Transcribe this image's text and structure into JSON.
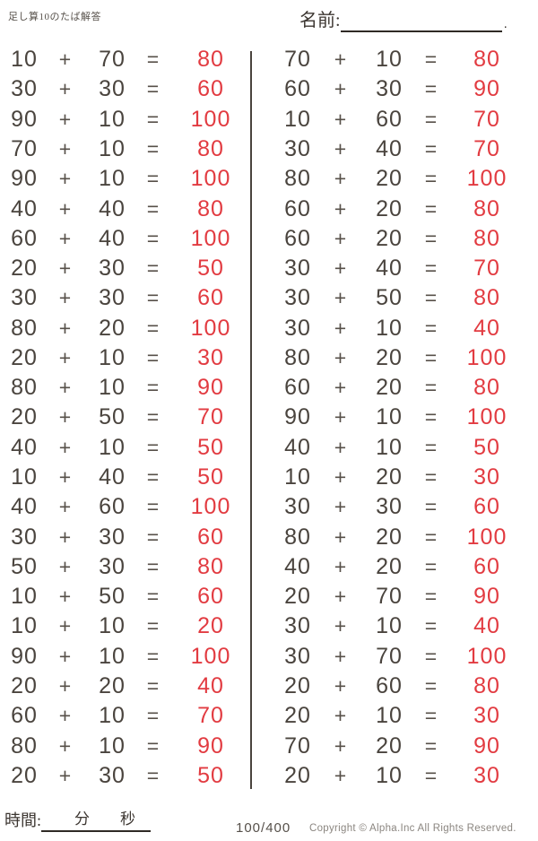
{
  "header": {
    "title": "足し算10のたば解答",
    "name_label": "名前:",
    "name_period": "."
  },
  "symbols": {
    "plus": "+",
    "equals": "="
  },
  "problems": {
    "left": [
      {
        "a": "10",
        "b": "70",
        "ans": "80"
      },
      {
        "a": "30",
        "b": "30",
        "ans": "60"
      },
      {
        "a": "90",
        "b": "10",
        "ans": "100"
      },
      {
        "a": "70",
        "b": "10",
        "ans": "80"
      },
      {
        "a": "90",
        "b": "10",
        "ans": "100"
      },
      {
        "a": "40",
        "b": "40",
        "ans": "80"
      },
      {
        "a": "60",
        "b": "40",
        "ans": "100"
      },
      {
        "a": "20",
        "b": "30",
        "ans": "50"
      },
      {
        "a": "30",
        "b": "30",
        "ans": "60"
      },
      {
        "a": "80",
        "b": "20",
        "ans": "100"
      },
      {
        "a": "20",
        "b": "10",
        "ans": "30"
      },
      {
        "a": "80",
        "b": "10",
        "ans": "90"
      },
      {
        "a": "20",
        "b": "50",
        "ans": "70"
      },
      {
        "a": "40",
        "b": "10",
        "ans": "50"
      },
      {
        "a": "10",
        "b": "40",
        "ans": "50"
      },
      {
        "a": "40",
        "b": "60",
        "ans": "100"
      },
      {
        "a": "30",
        "b": "30",
        "ans": "60"
      },
      {
        "a": "50",
        "b": "30",
        "ans": "80"
      },
      {
        "a": "10",
        "b": "50",
        "ans": "60"
      },
      {
        "a": "10",
        "b": "10",
        "ans": "20"
      },
      {
        "a": "90",
        "b": "10",
        "ans": "100"
      },
      {
        "a": "20",
        "b": "20",
        "ans": "40"
      },
      {
        "a": "60",
        "b": "10",
        "ans": "70"
      },
      {
        "a": "80",
        "b": "10",
        "ans": "90"
      },
      {
        "a": "20",
        "b": "30",
        "ans": "50"
      }
    ],
    "right": [
      {
        "a": "70",
        "b": "10",
        "ans": "80"
      },
      {
        "a": "60",
        "b": "30",
        "ans": "90"
      },
      {
        "a": "10",
        "b": "60",
        "ans": "70"
      },
      {
        "a": "30",
        "b": "40",
        "ans": "70"
      },
      {
        "a": "80",
        "b": "20",
        "ans": "100"
      },
      {
        "a": "60",
        "b": "20",
        "ans": "80"
      },
      {
        "a": "60",
        "b": "20",
        "ans": "80"
      },
      {
        "a": "30",
        "b": "40",
        "ans": "70"
      },
      {
        "a": "30",
        "b": "50",
        "ans": "80"
      },
      {
        "a": "30",
        "b": "10",
        "ans": "40"
      },
      {
        "a": "80",
        "b": "20",
        "ans": "100"
      },
      {
        "a": "60",
        "b": "20",
        "ans": "80"
      },
      {
        "a": "90",
        "b": "10",
        "ans": "100"
      },
      {
        "a": "40",
        "b": "10",
        "ans": "50"
      },
      {
        "a": "10",
        "b": "20",
        "ans": "30"
      },
      {
        "a": "30",
        "b": "30",
        "ans": "60"
      },
      {
        "a": "80",
        "b": "20",
        "ans": "100"
      },
      {
        "a": "40",
        "b": "20",
        "ans": "60"
      },
      {
        "a": "20",
        "b": "70",
        "ans": "90"
      },
      {
        "a": "30",
        "b": "10",
        "ans": "40"
      },
      {
        "a": "30",
        "b": "70",
        "ans": "100"
      },
      {
        "a": "20",
        "b": "60",
        "ans": "80"
      },
      {
        "a": "20",
        "b": "10",
        "ans": "30"
      },
      {
        "a": "70",
        "b": "20",
        "ans": "90"
      },
      {
        "a": "20",
        "b": "10",
        "ans": "30"
      }
    ]
  },
  "footer": {
    "time_label": "時間:",
    "minutes_label": "分",
    "seconds_label": "秒",
    "page_indicator": "100/400",
    "copyright": "Copyright ©  Alpha.Inc All Rights Reserved."
  },
  "colors": {
    "ink": "#4a443e",
    "answer_red": "#e23b41",
    "muted_gray": "#8b8680"
  }
}
